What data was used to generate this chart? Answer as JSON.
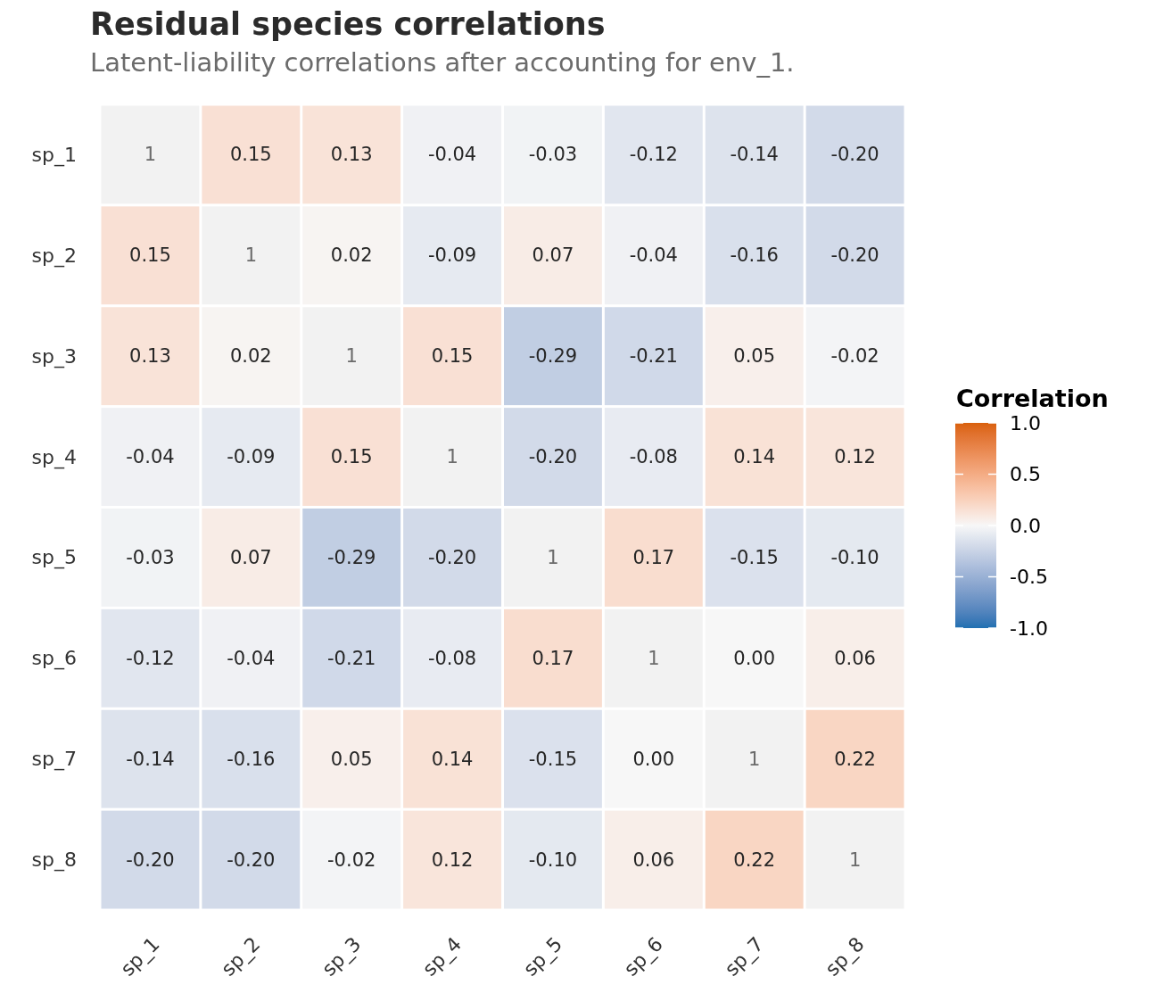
{
  "chart_data": {
    "type": "heatmap",
    "title": "Residual species correlations",
    "subtitle": "Latent-liability correlations after accounting for env_1.",
    "clabel": "Correlation",
    "categories": [
      "sp_1",
      "sp_2",
      "sp_3",
      "sp_4",
      "sp_5",
      "sp_6",
      "sp_7",
      "sp_8"
    ],
    "y_categories": [
      "sp_1",
      "sp_2",
      "sp_3",
      "sp_4",
      "sp_5",
      "sp_6",
      "sp_7",
      "sp_8"
    ],
    "cells": [
      [
        null,
        0.15,
        0.13,
        -0.04,
        -0.03,
        -0.12,
        -0.14,
        -0.2
      ],
      [
        0.15,
        null,
        0.02,
        -0.09,
        0.07,
        -0.04,
        -0.16,
        -0.2
      ],
      [
        0.13,
        0.02,
        null,
        0.15,
        -0.29,
        -0.21,
        0.05,
        -0.02
      ],
      [
        -0.04,
        -0.09,
        0.15,
        null,
        -0.2,
        -0.08,
        0.14,
        0.12
      ],
      [
        -0.03,
        0.07,
        -0.29,
        -0.2,
        null,
        0.17,
        -0.15,
        -0.1
      ],
      [
        -0.12,
        -0.04,
        -0.21,
        -0.08,
        0.17,
        null,
        0,
        0.06
      ],
      [
        -0.14,
        -0.16,
        0.05,
        0.14,
        -0.15,
        0,
        null,
        0.22
      ],
      [
        -0.2,
        -0.2,
        -0.02,
        0.12,
        -0.1,
        0.06,
        0.22,
        null
      ]
    ],
    "cell_labels": [
      [
        "1",
        "0.15",
        "0.13",
        "-0.04",
        "-0.03",
        "-0.12",
        "-0.14",
        "-0.20"
      ],
      [
        "0.15",
        "1",
        "0.02",
        "-0.09",
        "0.07",
        "-0.04",
        "-0.16",
        "-0.20"
      ],
      [
        "0.13",
        "0.02",
        "1",
        "0.15",
        "-0.29",
        "-0.21",
        "0.05",
        "-0.02"
      ],
      [
        "-0.04",
        "-0.09",
        "0.15",
        "1",
        "-0.20",
        "-0.08",
        "0.14",
        "0.12"
      ],
      [
        "-0.03",
        "0.07",
        "-0.29",
        "-0.20",
        "1",
        "0.17",
        "-0.15",
        "-0.10"
      ],
      [
        "-0.12",
        "-0.04",
        "-0.21",
        "-0.08",
        "0.17",
        "1",
        "0.00",
        "0.06"
      ],
      [
        "-0.14",
        "-0.16",
        "0.05",
        "0.14",
        "-0.15",
        "0.00",
        "1",
        "0.22"
      ],
      [
        "-0.20",
        "-0.20",
        "-0.02",
        "0.12",
        "-0.10",
        "0.06",
        "0.22",
        "1"
      ]
    ],
    "clim": [
      -1,
      1
    ],
    "cticks": [
      {
        "value": 1,
        "label": "1.0"
      },
      0.5,
      {
        "value": 0,
        "label": "0.0"
      },
      -0.5,
      {
        "value": -1,
        "label": "-1.0"
      }
    ]
  }
}
